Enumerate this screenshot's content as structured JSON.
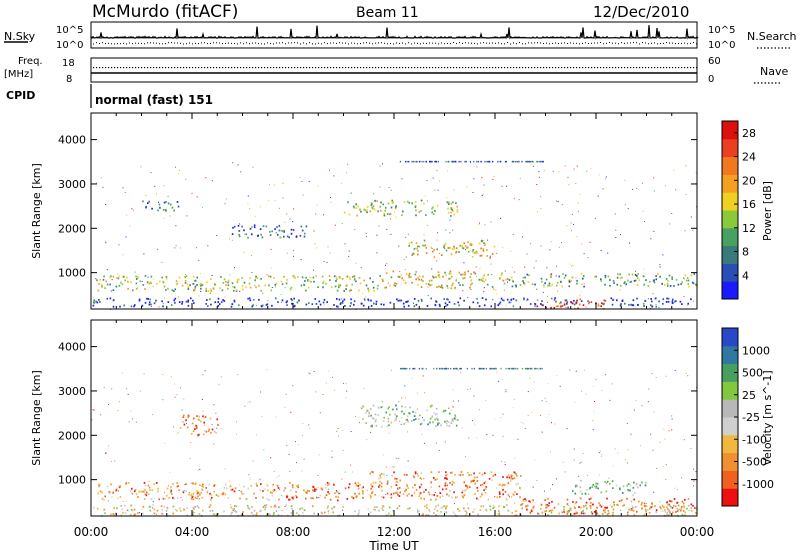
{
  "header": {
    "station": "McMurdo (fitACF)",
    "beam": "Beam 11",
    "date": "12/Dec/2010"
  },
  "status_panels": {
    "nsky_label": "N.Sky",
    "nsky_ticks": [
      "10^5",
      "10^0"
    ],
    "nsearch_label": "N.Search",
    "nsearch_ticks": [
      "10^5",
      "10^0"
    ],
    "freq_label_line1": "Freq.",
    "freq_label_line2": "[MHz]",
    "freq_ticks": [
      "18",
      "8"
    ],
    "nave_label": "Nave",
    "nave_ticks": [
      "60",
      "0"
    ],
    "cpid_label": "CPID",
    "cpid_text": "normal (fast) 151"
  },
  "colors": {
    "power_scale": [
      "#1a1aff",
      "#2a4fb4",
      "#3a7a7a",
      "#4aa060",
      "#8cc83c",
      "#f0d020",
      "#f5a020",
      "#f07820",
      "#e84020",
      "#dd1010"
    ],
    "velocity_scale": [
      "#2848c8",
      "#3078a0",
      "#48a060",
      "#80c840",
      "#b8b8b8",
      "#d0d0d0",
      "#f0b840",
      "#f09030",
      "#f06020",
      "#ee1010"
    ]
  },
  "chart_data": [
    {
      "type": "heatmap",
      "panel": "power",
      "title": "",
      "xlabel": "Time UT",
      "ylabel": "Slant Range [km]",
      "x_ticks": [
        "00:00",
        "04:00",
        "08:00",
        "12:00",
        "16:00",
        "20:00",
        "00:00"
      ],
      "xlim_hours": [
        0,
        24
      ],
      "y_ticks": [
        1000,
        2000,
        3000,
        4000
      ],
      "ylim_km": [
        180,
        4600
      ],
      "colorbar_label": "Power [dB]",
      "colorbar_ticks": [
        4,
        8,
        12,
        16,
        20,
        24,
        28
      ],
      "colorbar_range": [
        0,
        30
      ],
      "scatter_regions": [
        {
          "t0": 0.0,
          "t1": 24.0,
          "r0": 250,
          "r1": 450,
          "level": 0.1
        },
        {
          "t0": 0.2,
          "t1": 11.5,
          "r0": 600,
          "r1": 950,
          "level": 0.45
        },
        {
          "t0": 11.5,
          "t1": 16.5,
          "r0": 650,
          "r1": 1050,
          "level": 0.55
        },
        {
          "t0": 16.5,
          "t1": 24.0,
          "r0": 700,
          "r1": 1000,
          "level": 0.35
        },
        {
          "t0": 17.5,
          "t1": 20.5,
          "r0": 200,
          "r1": 420,
          "level": 0.85
        },
        {
          "t0": 10.0,
          "t1": 14.5,
          "r0": 2300,
          "r1": 2650,
          "level": 0.45
        },
        {
          "t0": 12.5,
          "t1": 16.0,
          "r0": 1350,
          "r1": 1750,
          "level": 0.55
        },
        {
          "t0": 2.0,
          "t1": 3.5,
          "r0": 2400,
          "r1": 2650,
          "level": 0.15
        },
        {
          "t0": 5.5,
          "t1": 8.5,
          "r0": 1800,
          "r1": 2100,
          "level": 0.2
        }
      ]
    },
    {
      "type": "heatmap",
      "panel": "velocity",
      "title": "",
      "xlabel": "Time UT",
      "ylabel": "Slant Range [km]",
      "x_ticks": [
        "00:00",
        "04:00",
        "08:00",
        "12:00",
        "16:00",
        "20:00",
        "00:00"
      ],
      "xlim_hours": [
        0,
        24
      ],
      "y_ticks": [
        1000,
        2000,
        3000,
        4000
      ],
      "ylim_km": [
        180,
        4600
      ],
      "colorbar_label": "Velocity [m s^-1]",
      "colorbar_ticks": [
        1000,
        500,
        25,
        -25,
        -100,
        -500,
        -1000
      ],
      "scatter_regions": [
        {
          "t0": 0.2,
          "t1": 11.0,
          "r0": 550,
          "r1": 950,
          "level": 0.75
        },
        {
          "t0": 11.0,
          "t1": 17.0,
          "r0": 550,
          "r1": 1200,
          "level": 0.8
        },
        {
          "t0": 17.0,
          "t1": 24.0,
          "r0": 250,
          "r1": 600,
          "level": 0.85
        },
        {
          "t0": 10.5,
          "t1": 14.5,
          "r0": 2200,
          "r1": 2700,
          "level": 0.4
        },
        {
          "t0": 3.5,
          "t1": 5.0,
          "r0": 2000,
          "r1": 2500,
          "level": 0.8
        },
        {
          "t0": 19.0,
          "t1": 22.0,
          "r0": 700,
          "r1": 1000,
          "level": 0.35
        },
        {
          "t0": 0.0,
          "t1": 24.0,
          "r0": 200,
          "r1": 450,
          "level": 0.55
        }
      ]
    }
  ]
}
